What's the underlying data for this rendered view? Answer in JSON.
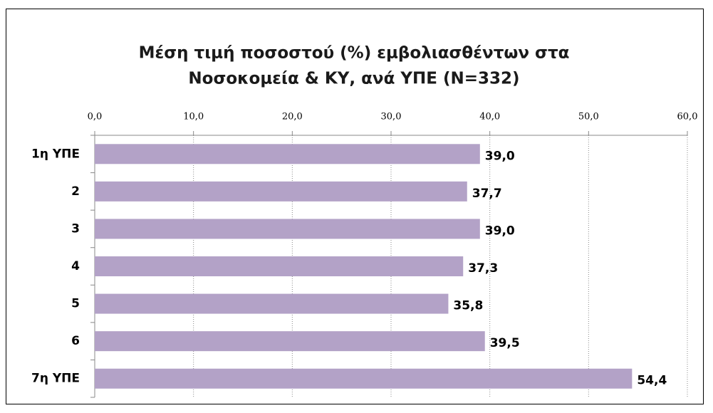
{
  "chart_data": {
    "type": "bar",
    "orientation": "horizontal",
    "title": "Μέση τιμή ποσοστού (%) εμβολιασθέντων στα",
    "subtitle": "Νοσοκομεία & ΚΥ, ανά ΥΠΕ (N=332)",
    "categories": [
      "1η ΥΠΕ",
      "2",
      "3",
      "4",
      "5",
      "6",
      "7η ΥΠΕ"
    ],
    "values": [
      39.0,
      37.7,
      39.0,
      37.3,
      35.8,
      39.5,
      54.4
    ],
    "value_labels": [
      "39,0",
      "37,7",
      "39,0",
      "37,3",
      "35,8",
      "39,5",
      "54,4"
    ],
    "color": "#b3a2c7",
    "xlim": [
      0,
      60
    ],
    "xticks": [
      {
        "value": 0,
        "label": "0,0"
      },
      {
        "value": 10,
        "label": "10,0"
      },
      {
        "value": 20,
        "label": "20,0"
      },
      {
        "value": 30,
        "label": "30,0"
      },
      {
        "value": 40,
        "label": "40,0"
      },
      {
        "value": 50,
        "label": "50,0"
      },
      {
        "value": 60,
        "label": "60,0"
      }
    ],
    "grid": true
  }
}
